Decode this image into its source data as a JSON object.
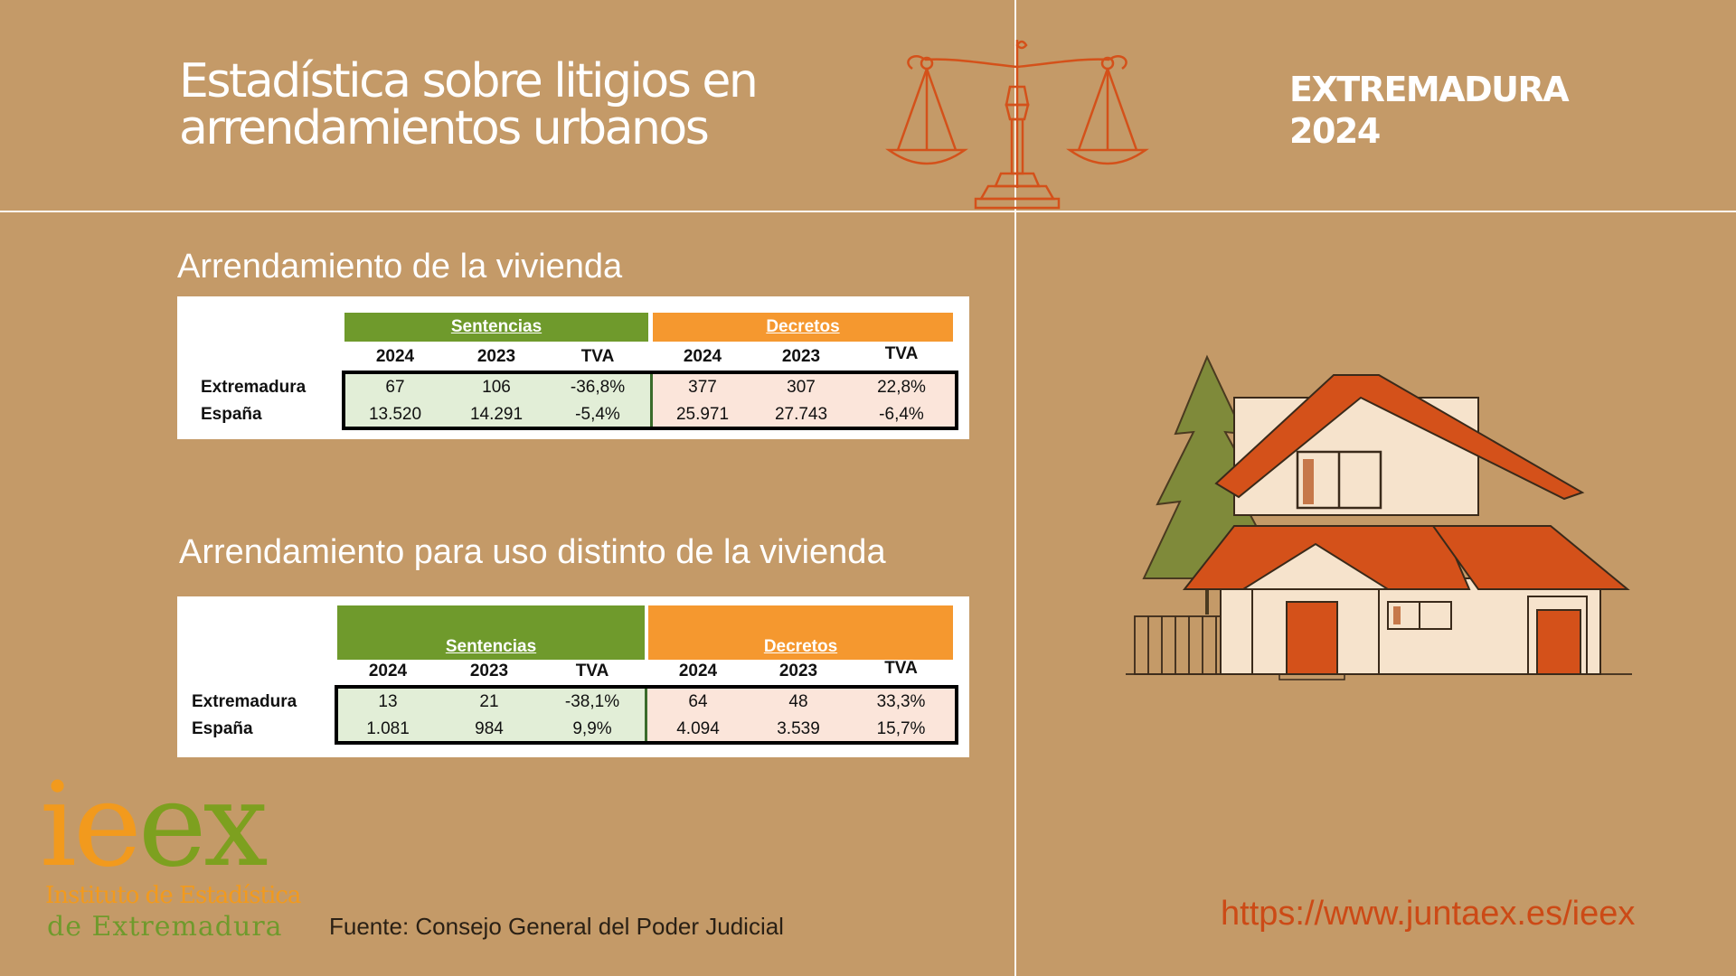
{
  "header": {
    "title_line1": "Estadística sobre litigios en",
    "title_line2": "arrendamientos urbanos",
    "region": "EXTREMADURA",
    "year": "2024"
  },
  "tables": [
    {
      "section_title": "Arrendamiento de la vivienda",
      "group1": "Sentencias",
      "group2": "Decretos",
      "columns": [
        "2024",
        "2023",
        "TVA",
        "2024",
        "2023",
        "TVA"
      ],
      "rows": [
        {
          "label": "Extremadura",
          "values": [
            "67",
            "106",
            "-36,8%",
            "377",
            "307",
            "22,8%"
          ]
        },
        {
          "label": "España",
          "values": [
            "13.520",
            "14.291",
            "-5,4%",
            "25.971",
            "27.743",
            "-6,4%"
          ]
        }
      ]
    },
    {
      "section_title": "Arrendamiento para uso distinto de la  vivienda",
      "group1": "Sentencias",
      "group2": "Decretos",
      "columns": [
        "2024",
        "2023",
        "TVA",
        "2024",
        "2023",
        "TVA"
      ],
      "rows": [
        {
          "label": "Extremadura",
          "values": [
            "13",
            "21",
            "-38,1%",
            "64",
            "48",
            "33,3%"
          ]
        },
        {
          "label": "España",
          "values": [
            "1.081",
            "984",
            "9,9%",
            "4.094",
            "3.539",
            "15,7%"
          ]
        }
      ]
    }
  ],
  "logo": {
    "letters_orange": "ie",
    "letters_green": "ex",
    "line1": "Instituto de Estadística",
    "line2": "de Extremadura"
  },
  "footer": {
    "source": "Fuente: Consejo General del Poder Judicial",
    "url": "https://www.juntaex.es/ieex"
  },
  "colors": {
    "background": "#c49a68",
    "green_header": "#6f9a2c",
    "orange_header": "#f5982f",
    "green_cells": "#e2eed7",
    "peach_cells": "#fbe5da",
    "url": "#cc4a16",
    "roof": "#d4511a"
  },
  "icons": [
    "scales-of-justice-icon",
    "house-illustration-icon",
    "ieex-logo"
  ]
}
